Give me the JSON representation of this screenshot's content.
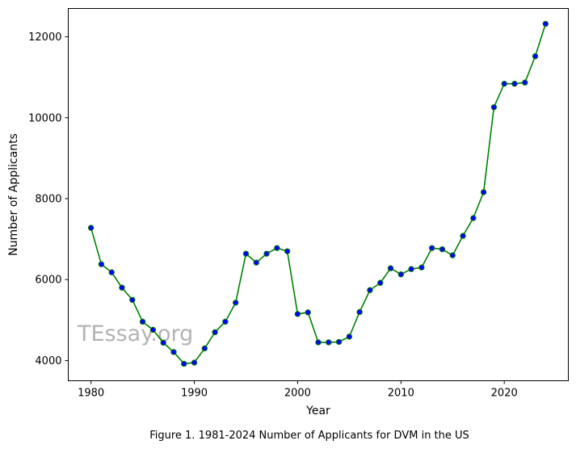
{
  "chart_data": {
    "type": "line",
    "title": "",
    "xlabel": "Year",
    "ylabel": "Number of Applicants",
    "caption": "Figure 1. 1981-2024 Number of Applicants for DVM in the US",
    "watermark": "TEssay.org",
    "xlim": [
      1977.8,
      2026.2
    ],
    "ylim": [
      3500,
      12700
    ],
    "xticks": [
      1980,
      1990,
      2000,
      2010,
      2020
    ],
    "yticks": [
      4000,
      6000,
      8000,
      10000,
      12000
    ],
    "grid": false,
    "line_color": "#008000",
    "marker_color": "#0000ff",
    "series": [
      {
        "x": [
          1980,
          1981,
          1982,
          1983,
          1984,
          1985,
          1986,
          1987,
          1988,
          1989,
          1990,
          1991,
          1992,
          1993,
          1994,
          1995,
          1996,
          1997,
          1998,
          1999,
          2000,
          2001,
          2002,
          2003,
          2004,
          2005,
          2006,
          2007,
          2008,
          2009,
          2010,
          2011,
          2012,
          2013,
          2014,
          2015,
          2016,
          2017,
          2018,
          2019,
          2020,
          2021,
          2022,
          2023,
          2024
        ],
        "values": [
          7280,
          6380,
          6180,
          5800,
          5500,
          4960,
          4760,
          4440,
          4210,
          3920,
          3950,
          4300,
          4700,
          4960,
          5430,
          6640,
          6420,
          6640,
          6780,
          6700,
          5150,
          5190,
          4450,
          4450,
          4460,
          4590,
          5200,
          5740,
          5920,
          6280,
          6130,
          6260,
          6300,
          6780,
          6750,
          6600,
          7080,
          7520,
          8160,
          10260,
          10840,
          10840,
          10870,
          11520,
          12320
        ]
      }
    ]
  }
}
